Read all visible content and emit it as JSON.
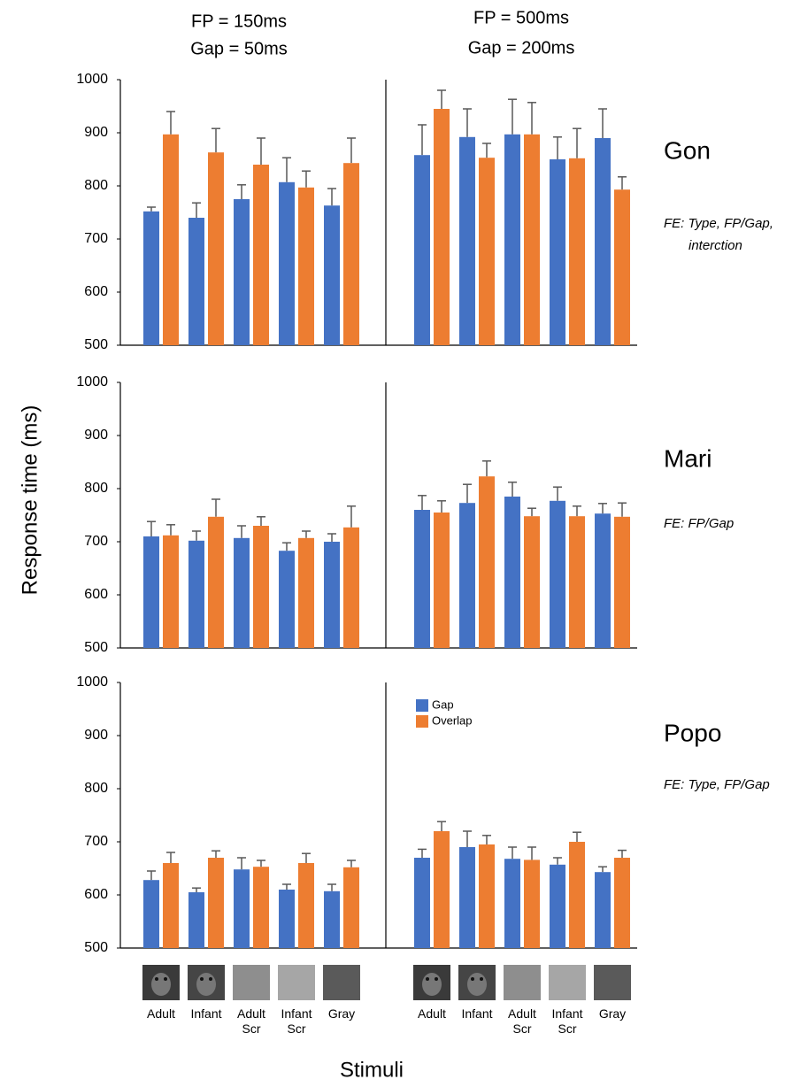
{
  "panel_titles": [
    [
      "FP = 150ms",
      "Gap = 50ms"
    ],
    [
      "FP = 500ms",
      "Gap = 200ms"
    ]
  ],
  "ylabel": "Response time (ms)",
  "xlabel": "Stimuli",
  "rows": [
    {
      "label": "Gon",
      "note": [
        "FE: Type, FP/Gap,",
        "interction"
      ]
    },
    {
      "label": "Mari",
      "note": [
        "FE: FP/Gap"
      ]
    },
    {
      "label": "Popo",
      "note": [
        "FE: Type, FP/Gap"
      ]
    }
  ],
  "chart_data": [
    {
      "type": "bar",
      "ylim": [
        500,
        1000
      ],
      "yticks": [
        500,
        600,
        700,
        800,
        900,
        1000
      ],
      "series": [
        {
          "color": "#4472c4",
          "values": [
            752,
            740,
            775,
            807,
            763
          ],
          "errors": [
            8,
            28,
            27,
            46,
            32
          ]
        },
        {
          "color": "#ed7d31",
          "values": [
            897,
            863,
            840,
            797,
            843
          ],
          "errors": [
            43,
            45,
            50,
            31,
            47
          ]
        }
      ]
    },
    {
      "type": "bar",
      "ylim": [
        500,
        1000
      ],
      "series": [
        {
          "color": "#4472c4",
          "values": [
            858,
            892,
            897,
            850,
            890
          ],
          "errors": [
            57,
            53,
            66,
            42,
            55
          ]
        },
        {
          "color": "#ed7d31",
          "values": [
            945,
            853,
            897,
            852,
            793
          ],
          "errors": [
            35,
            27,
            60,
            56,
            24
          ]
        }
      ]
    },
    {
      "type": "bar",
      "ylim": [
        500,
        1000
      ],
      "yticks": [
        500,
        600,
        700,
        800,
        900,
        1000
      ],
      "series": [
        {
          "color": "#4472c4",
          "values": [
            710,
            702,
            707,
            683,
            700
          ],
          "errors": [
            28,
            18,
            23,
            15,
            15
          ]
        },
        {
          "color": "#ed7d31",
          "values": [
            712,
            747,
            730,
            707,
            727
          ],
          "errors": [
            20,
            33,
            17,
            13,
            40
          ]
        }
      ]
    },
    {
      "type": "bar",
      "ylim": [
        500,
        1000
      ],
      "series": [
        {
          "color": "#4472c4",
          "values": [
            760,
            773,
            785,
            777,
            753
          ],
          "errors": [
            27,
            35,
            27,
            26,
            19
          ]
        },
        {
          "color": "#ed7d31",
          "values": [
            755,
            823,
            748,
            748,
            747
          ],
          "errors": [
            22,
            29,
            15,
            19,
            26
          ]
        }
      ]
    },
    {
      "type": "bar",
      "ylim": [
        500,
        1000
      ],
      "yticks": [
        500,
        600,
        700,
        800,
        900,
        1000
      ],
      "categories": [
        "Adult",
        "Infant",
        "Adult Scr",
        "Infant Scr",
        "Gray"
      ],
      "series": [
        {
          "color": "#4472c4",
          "values": [
            628,
            605,
            648,
            610,
            607
          ],
          "errors": [
            17,
            8,
            22,
            10,
            13
          ]
        },
        {
          "color": "#ed7d31",
          "values": [
            660,
            670,
            653,
            660,
            652
          ],
          "errors": [
            20,
            13,
            12,
            18,
            13
          ]
        }
      ]
    },
    {
      "type": "bar",
      "ylim": [
        500,
        1000
      ],
      "legend": "top-left",
      "categories": [
        "Adult",
        "Infant",
        "Adult Scr",
        "Infant Scr",
        "Gray"
      ],
      "series": [
        {
          "name": "Gap",
          "color": "#4472c4",
          "values": [
            670,
            690,
            668,
            657,
            643
          ],
          "errors": [
            16,
            30,
            22,
            13,
            10
          ]
        },
        {
          "name": "Overlap",
          "color": "#ed7d31",
          "values": [
            720,
            695,
            666,
            700,
            670
          ],
          "errors": [
            18,
            17,
            24,
            18,
            14
          ]
        }
      ]
    }
  ]
}
